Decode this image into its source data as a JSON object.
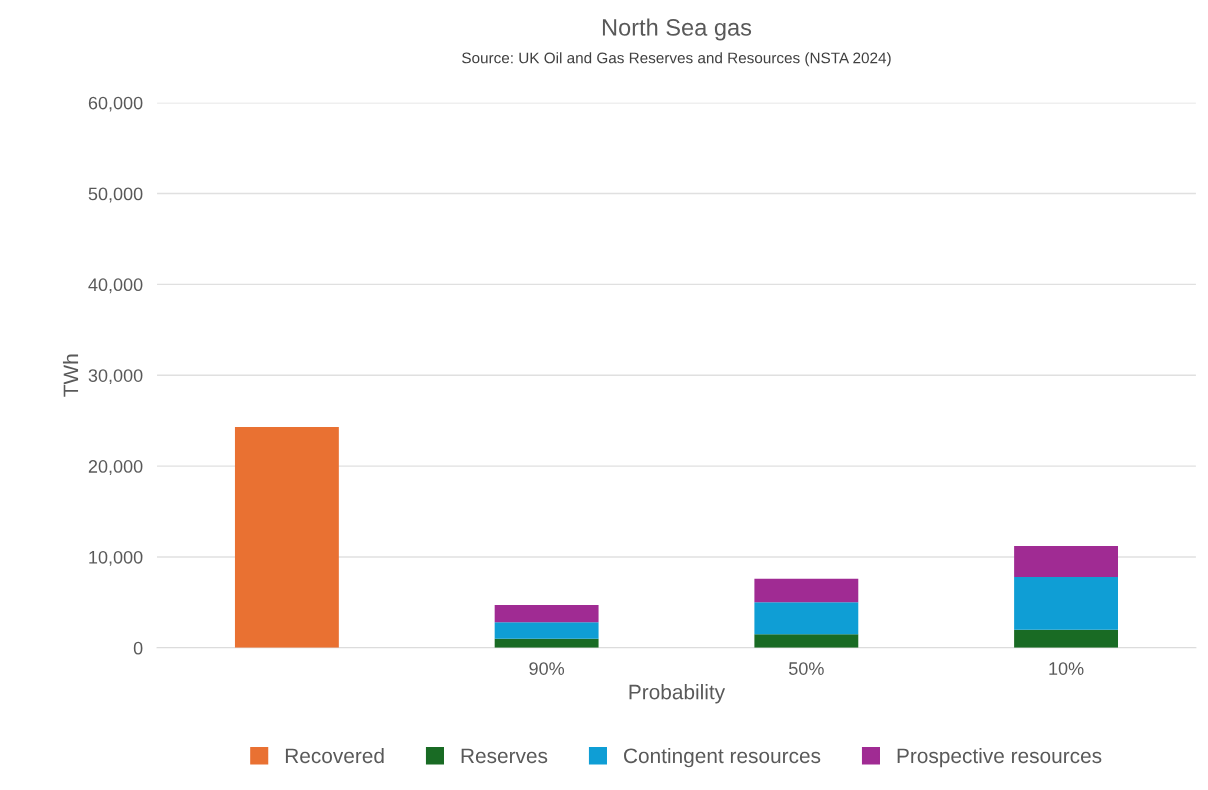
{
  "chart_data": {
    "type": "bar",
    "title": "North Sea gas",
    "subtitle": "Source: UK Oil and Gas Reserves and Resources (NSTA 2024)",
    "xlabel": "Probability",
    "ylabel": "TWh",
    "categories": [
      null,
      "90%",
      "50%",
      "10%"
    ],
    "stacked": true,
    "series": [
      {
        "name": "Recovered",
        "color": "#e97132",
        "values": [
          24300,
          null,
          null,
          null
        ]
      },
      {
        "name": "Reserves",
        "color": "#196b24",
        "values": [
          null,
          1000,
          1500,
          2000
        ]
      },
      {
        "name": "Contingent resources",
        "color": "#0f9ed5",
        "values": [
          null,
          1800,
          3500,
          5800
        ]
      },
      {
        "name": "Prospective resources",
        "color": "#a02b93",
        "values": [
          null,
          1900,
          2600,
          3400
        ]
      }
    ],
    "ylim": [
      0,
      60000
    ],
    "yticks": [
      {
        "value": 0,
        "label": "0"
      },
      {
        "value": 10000,
        "label": "10,000"
      },
      {
        "value": 20000,
        "label": "20,000"
      },
      {
        "value": 30000,
        "label": "30,000"
      },
      {
        "value": 40000,
        "label": "40,000"
      },
      {
        "value": 50000,
        "label": "50,000"
      },
      {
        "value": 60000,
        "label": "60,000"
      }
    ],
    "grid": "y",
    "legend": "bottom"
  }
}
